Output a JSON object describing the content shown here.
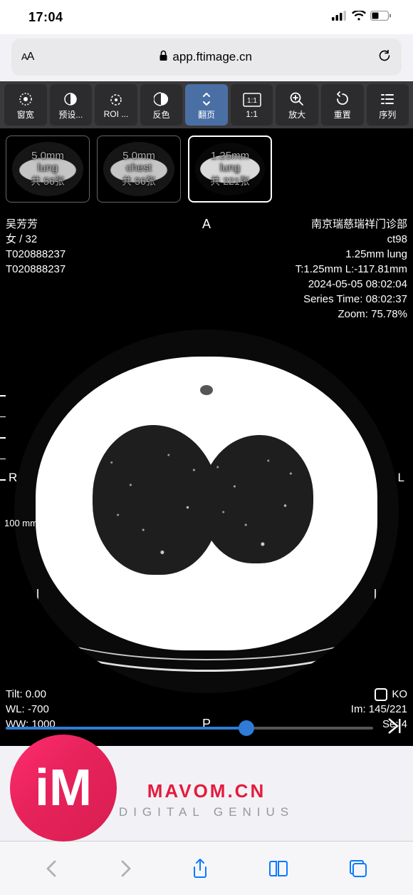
{
  "status": {
    "time": "17:04"
  },
  "addressbar": {
    "aa": "AA",
    "url": "app.ftimage.cn"
  },
  "toolbar": [
    {
      "key": "window",
      "label": "窗宽",
      "active": false
    },
    {
      "key": "preset",
      "label": "预设...",
      "active": false
    },
    {
      "key": "roi",
      "label": "ROI ...",
      "active": false
    },
    {
      "key": "invert",
      "label": "反色",
      "active": false
    },
    {
      "key": "page",
      "label": "翻页",
      "active": true
    },
    {
      "key": "ratio",
      "label": "1:1",
      "active": false
    },
    {
      "key": "zoom",
      "label": "放大",
      "active": false
    },
    {
      "key": "reset",
      "label": "重置",
      "active": false
    },
    {
      "key": "series",
      "label": "序列",
      "active": false
    }
  ],
  "thumbnails": [
    {
      "title": "5.0mm lung",
      "count": "共 56张",
      "selected": false
    },
    {
      "title": "5.0mm chest",
      "count": "共 56张",
      "selected": false
    },
    {
      "title": "1.25mm lung",
      "count": "共 221张",
      "selected": true
    }
  ],
  "overlay": {
    "top_left": [
      "吴芳芳",
      "女 / 32",
      "T020888237",
      "T020888237"
    ],
    "top_center": "A",
    "top_right": [
      "南京瑞慈瑞祥门诊部",
      "ct98",
      "1.25mm lung",
      "T:1.25mm L:-117.81mm",
      "2024-05-05 08:02:04",
      "Series Time: 08:02:37",
      "Zoom: 75.78%"
    ],
    "mid_left": "R",
    "mid_right": "L",
    "scale": "100 mm",
    "bottom_left": [
      "Tilt: 0.00",
      "WL: -700",
      "WW: 1000"
    ],
    "bottom_center": "P",
    "bottom_right_ko": "KO",
    "bottom_right": [
      "Im: 145/221",
      "Se: 4"
    ]
  },
  "slider": {
    "value": 145,
    "max": 221,
    "fill_pct": 65.6
  },
  "watermark": {
    "line1": "MAVOM.CN",
    "line2": "DIGITAL GENIUS"
  },
  "logo": {
    "text": "iM"
  },
  "colors": {
    "toolbar_bg": "#3a3a3c",
    "tool_bg": "#2c2c2e",
    "tool_active": "#4a6fa5",
    "slider_fill": "#2f7bd6",
    "safari_blue": "#0a7aff",
    "wm_red": "#e41b3e",
    "logo_grad_a": "#ff2d6f",
    "logo_grad_b": "#d81e50"
  }
}
